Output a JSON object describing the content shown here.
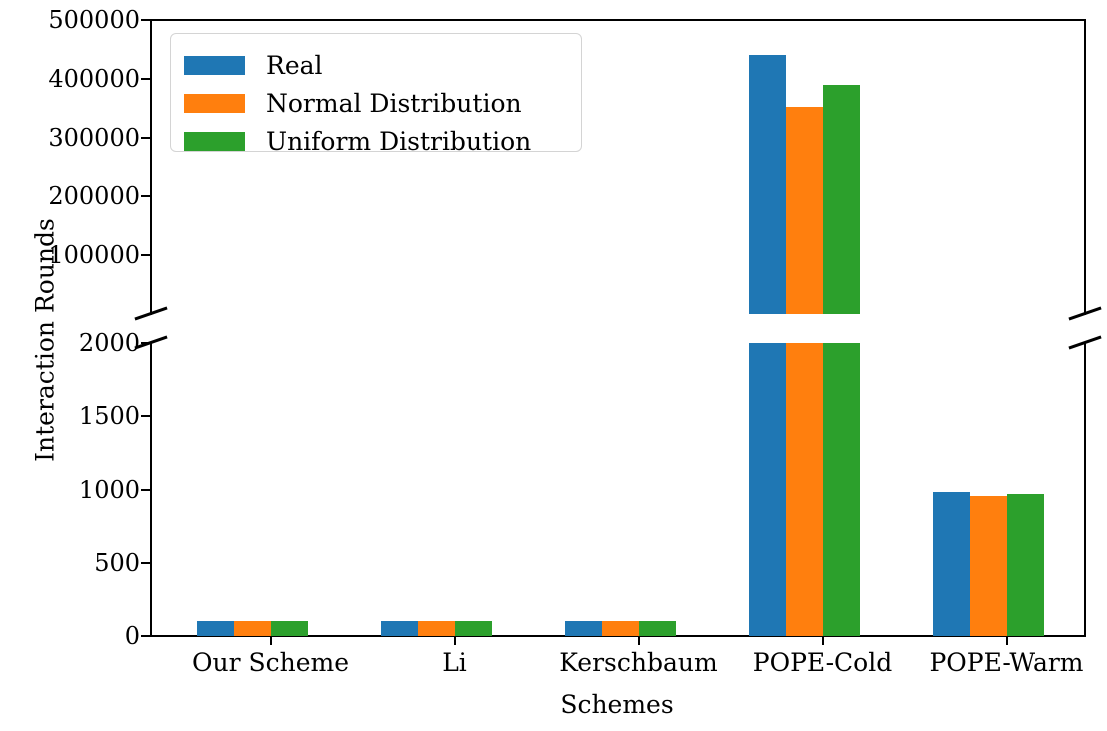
{
  "chart_data": {
    "type": "bar",
    "title": "",
    "xlabel": "Schemes",
    "ylabel": "Interaction Rounds",
    "categories": [
      "Our Scheme",
      "Li",
      "Kerschbaum",
      "POPE-Cold",
      "POPE-Warm"
    ],
    "series": [
      {
        "name": "Real",
        "color": "#1f77b4",
        "values": [
          100,
          100,
          100,
          440000,
          980
        ]
      },
      {
        "name": "Normal Distribution",
        "color": "#ff7f0e",
        "values": [
          100,
          100,
          100,
          352000,
          955
        ]
      },
      {
        "name": "Uniform Distribution",
        "color": "#2ca02c",
        "values": [
          100,
          100,
          100,
          390000,
          970
        ]
      }
    ],
    "broken_axis": {
      "top_panel": {
        "ylim": [
          0,
          500000
        ],
        "yticks": [
          100000,
          200000,
          300000,
          400000,
          500000
        ],
        "ytick_labels": [
          "100000",
          "200000",
          "300000",
          "400000",
          "500000"
        ]
      },
      "bottom_panel": {
        "ylim": [
          0,
          2000
        ],
        "yticks": [
          0,
          500,
          1000,
          1500,
          2000
        ],
        "ytick_labels": [
          "0",
          "500",
          "1000",
          "1500",
          "2000"
        ]
      }
    },
    "legend": {
      "position": "upper left",
      "entries": [
        "Real",
        "Normal Distribution",
        "Uniform Distribution"
      ]
    },
    "grid": false
  }
}
